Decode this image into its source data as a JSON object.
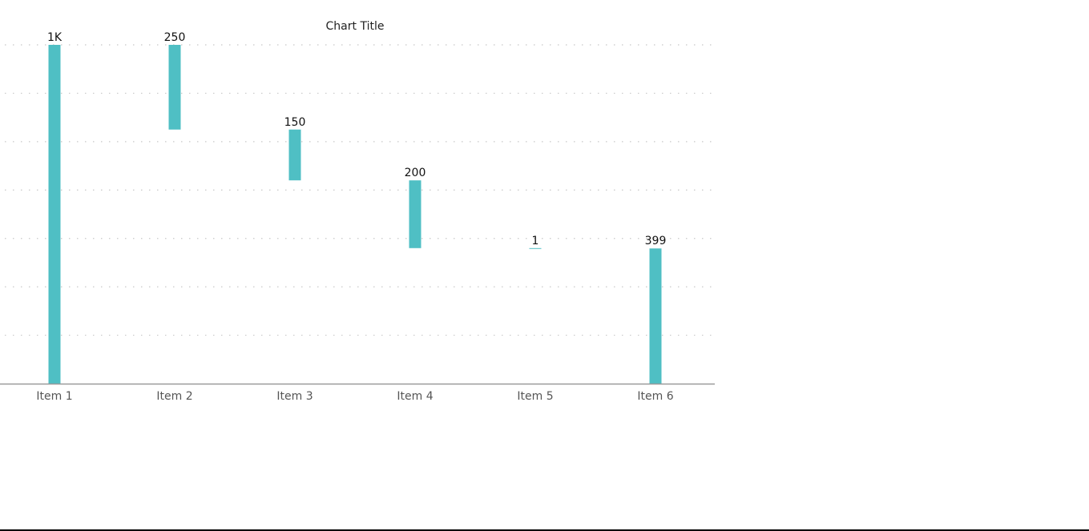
{
  "chart_data": {
    "type": "waterfall",
    "title": "Chart Title",
    "categories": [
      "Item 1",
      "Item 2",
      "Item 3",
      "Item 4",
      "Item 5",
      "Item 6"
    ],
    "values": [
      1000,
      -250,
      -150,
      -200,
      -1,
      399
    ],
    "kinds": [
      "total",
      "decrease",
      "decrease",
      "decrease",
      "decrease",
      "total"
    ],
    "data_labels": [
      "1K",
      "250",
      "150",
      "200",
      "1",
      "399"
    ],
    "ylim": [
      0,
      1000
    ],
    "grid": true,
    "gridline_count": 7,
    "legend": "none",
    "bar_color": "#4FBFC4",
    "axis_color": "#9a9a9a",
    "grid_color": "#c8c8c8"
  }
}
